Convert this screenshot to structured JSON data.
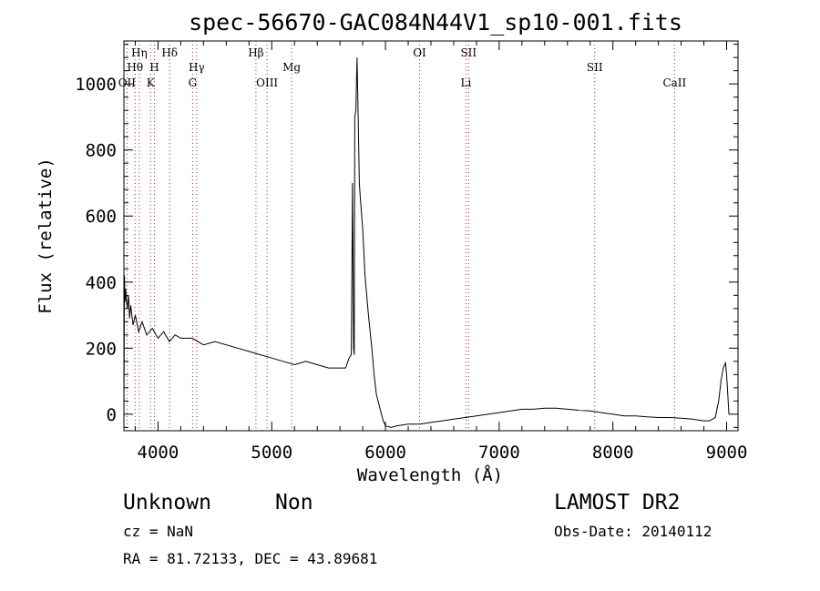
{
  "chart_data": {
    "type": "line",
    "title": "spec-56670-GAC084N44V1_sp10-001.fits",
    "xlabel": "Wavelength (Å)",
    "ylabel": "Flux (relative)",
    "xlim": [
      3700,
      9100
    ],
    "ylim": [
      -50,
      1130
    ],
    "xticks": [
      4000,
      5000,
      6000,
      7000,
      8000,
      9000
    ],
    "yticks": [
      0,
      200,
      400,
      600,
      800,
      1000
    ],
    "grid": false,
    "series": [
      {
        "x": [
          3700,
          3705,
          3710,
          3715,
          3720,
          3730,
          3740,
          3750,
          3760,
          3780,
          3800,
          3830,
          3860,
          3900,
          3950,
          4000,
          4050,
          4100,
          4150,
          4200,
          4300,
          4400,
          4500,
          4600,
          4700,
          4800,
          4900,
          5000,
          5100,
          5200,
          5300,
          5400,
          5500,
          5600,
          5650,
          5680,
          5700,
          5710,
          5720,
          5725,
          5730,
          5740,
          5745,
          5750,
          5760,
          5770,
          5780,
          5800,
          5820,
          5850,
          5880,
          5900,
          5920,
          5950,
          5980,
          6000,
          6050,
          6100,
          6200,
          6300,
          6400,
          6500,
          6600,
          6700,
          6800,
          6900,
          7000,
          7100,
          7200,
          7300,
          7400,
          7500,
          7600,
          7700,
          7800,
          7900,
          8000,
          8100,
          8200,
          8300,
          8400,
          8500,
          8600,
          8700,
          8800,
          8850,
          8900,
          8930,
          8950,
          8970,
          8990,
          9000,
          9010,
          9020
        ],
        "y": [
          0,
          420,
          340,
          380,
          350,
          320,
          360,
          290,
          330,
          270,
          300,
          250,
          280,
          240,
          260,
          230,
          250,
          220,
          240,
          230,
          230,
          210,
          220,
          210,
          200,
          190,
          180,
          170,
          160,
          150,
          160,
          150,
          140,
          140,
          140,
          170,
          180,
          700,
          200,
          180,
          900,
          920,
          1000,
          1080,
          900,
          700,
          650,
          560,
          420,
          300,
          200,
          120,
          60,
          20,
          -20,
          -35,
          -40,
          -35,
          -30,
          -30,
          -25,
          -20,
          -15,
          -10,
          -5,
          0,
          5,
          10,
          15,
          15,
          18,
          18,
          15,
          12,
          10,
          5,
          0,
          -5,
          -5,
          -8,
          -10,
          -10,
          -12,
          -15,
          -20,
          -20,
          -10,
          40,
          100,
          140,
          155,
          120,
          60,
          0
        ]
      }
    ],
    "emission_lines": [
      {
        "label": "Hη",
        "x": 3835,
        "row": 1
      },
      {
        "label": "Hθ",
        "x": 3798,
        "row": 2
      },
      {
        "label": "OII",
        "x": 3727,
        "row": 3
      },
      {
        "label": "H",
        "x": 3968,
        "row": 2
      },
      {
        "label": "K",
        "x": 3934,
        "row": 3
      },
      {
        "label": "Hδ",
        "x": 4102,
        "row": 1
      },
      {
        "label": "Hγ",
        "x": 4340,
        "row": 2
      },
      {
        "label": "G",
        "x": 4304,
        "row": 3
      },
      {
        "label": "Hβ",
        "x": 4861,
        "row": 1
      },
      {
        "label": "OIII",
        "x": 4959,
        "row": 3
      },
      {
        "label": "Mg",
        "x": 5175,
        "row": 2
      },
      {
        "label": "OI",
        "x": 6300,
        "row": 1
      },
      {
        "label": "SII",
        "x": 6731,
        "row": 1
      },
      {
        "label": "Li",
        "x": 6708,
        "row": 3
      },
      {
        "label": "SII",
        "x": 7840,
        "row": 2
      },
      {
        "label": "CaII",
        "x": 8542,
        "row": 3
      }
    ]
  },
  "footer": {
    "object_class": "Unknown",
    "subclass": "Non",
    "redshift": "cz = NaN",
    "coords": "RA =  81.72133, DEC =  43.89681",
    "survey": "LAMOST DR2",
    "obs_date": "Obs-Date: 20140112"
  }
}
